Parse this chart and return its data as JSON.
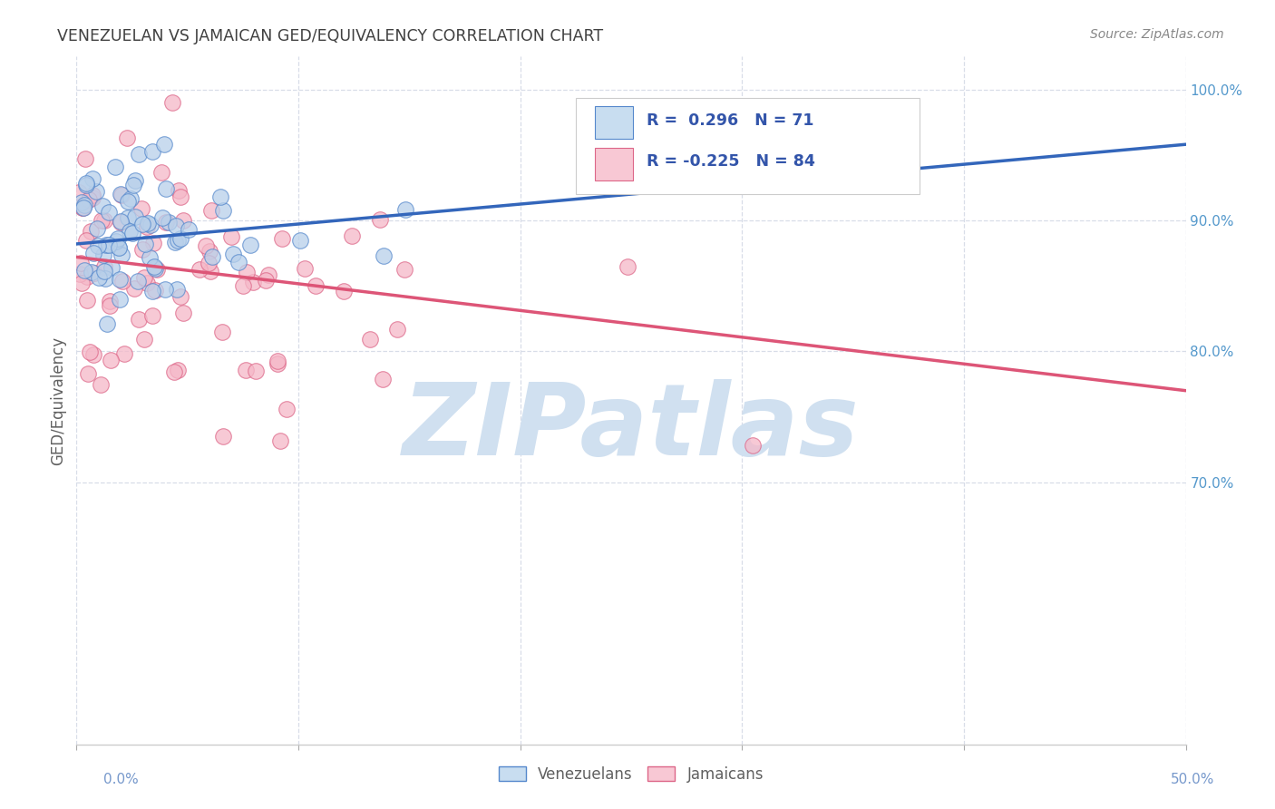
{
  "title": "VENEZUELAN VS JAMAICAN GED/EQUIVALENCY CORRELATION CHART",
  "source": "Source: ZipAtlas.com",
  "ylabel": "GED/Equivalency",
  "xmin": 0.0,
  "xmax": 0.5,
  "ymin": 0.5,
  "ymax": 1.025,
  "r_venezuelan": 0.296,
  "n_venezuelan": 71,
  "r_jamaican": -0.225,
  "n_jamaican": 84,
  "blue_fill": "#b8d0ea",
  "blue_edge": "#5588cc",
  "blue_line": "#3366bb",
  "pink_fill": "#f5b8c8",
  "pink_edge": "#dd6688",
  "pink_line": "#dd5577",
  "legend_blue_fill": "#c8ddf0",
  "legend_pink_fill": "#f8c8d4",
  "legend_text_color": "#3355aa",
  "watermark_color": "#d0e0f0",
  "background_color": "#ffffff",
  "grid_color": "#d8dde8",
  "title_color": "#404040",
  "source_color": "#888888",
  "right_tick_color": "#5599cc",
  "xtick_color": "#7799cc",
  "ven_line_y0": 0.882,
  "ven_line_y1": 0.958,
  "jam_line_y0": 0.872,
  "jam_line_y1": 0.77,
  "seed": 123
}
